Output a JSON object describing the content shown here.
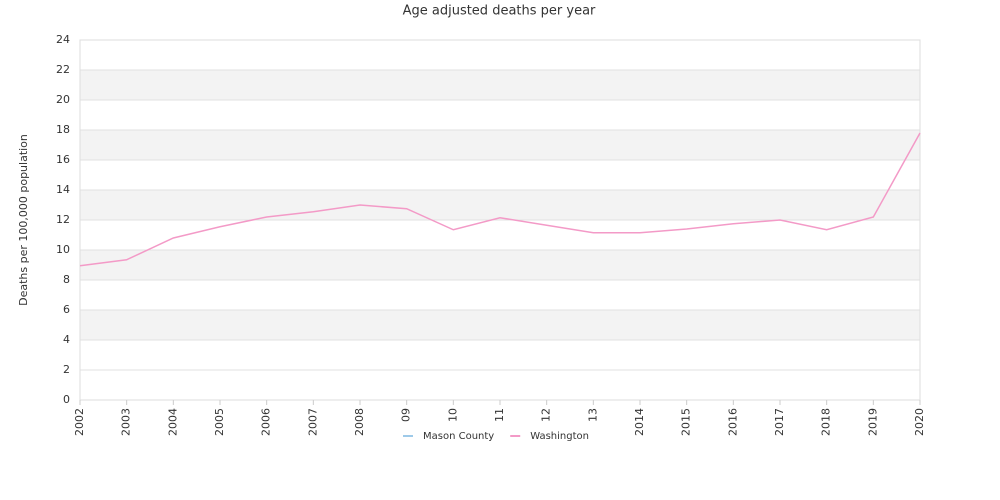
{
  "chart_data": {
    "type": "line",
    "title": "Age adjusted deaths per year",
    "y_label": "Deaths per 100,000 population",
    "categories": [
      "2002",
      "2003",
      "2004",
      "2005",
      "2006",
      "2007",
      "2008",
      "09",
      "10",
      "11",
      "12",
      "13",
      "2014",
      "2015",
      "2016",
      "2017",
      "2018",
      "2019",
      "2020"
    ],
    "series": [
      {
        "name": "Mason County",
        "color": "#9ecae9",
        "values": [
          null,
          null,
          null,
          null,
          null,
          null,
          null,
          null,
          null,
          null,
          null,
          null,
          null,
          null,
          null,
          null,
          null,
          null,
          null
        ]
      },
      {
        "name": "Washington",
        "color": "#f39ac7",
        "values": [
          8.95,
          9.35,
          10.8,
          11.55,
          12.2,
          12.55,
          13.0,
          12.75,
          11.35,
          12.15,
          11.65,
          11.15,
          11.15,
          11.4,
          11.75,
          12.0,
          11.35,
          12.2,
          17.8
        ]
      }
    ],
    "ylim": [
      0,
      24
    ],
    "yticks": [
      0,
      2,
      4,
      6,
      8,
      10,
      12,
      14,
      16,
      18,
      20,
      22,
      24
    ],
    "grid": true,
    "legend": "bottom"
  }
}
